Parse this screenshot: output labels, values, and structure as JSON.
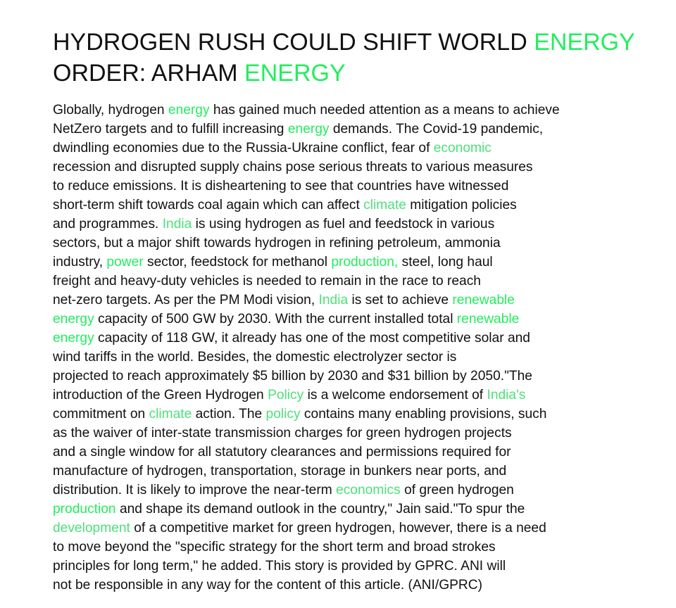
{
  "article": {
    "headline_lines": [
      [
        {
          "text": "HYDROGEN RUSH COULD SHIFT WORLD ",
          "hl": null
        },
        {
          "text": "ENERGY",
          "hl": "bright"
        }
      ],
      [
        {
          "text": "ORDER: ARHAM ",
          "hl": null
        },
        {
          "text": "ENERGY",
          "hl": "bright"
        }
      ]
    ],
    "body_lines": [
      [
        {
          "text": "Globally, hydrogen ",
          "hl": null
        },
        {
          "text": "energy",
          "hl": "bright"
        },
        {
          "text": " has gained much needed attention as a means to achieve",
          "hl": null
        }
      ],
      [
        {
          "text": "NetZero targets and to fulfill increasing ",
          "hl": null
        },
        {
          "text": "energy",
          "hl": "bright"
        },
        {
          "text": " demands. The Covid-19 pandemic,",
          "hl": null
        }
      ],
      [
        {
          "text": "dwindling economies due to the Russia-Ukraine conflict, fear of ",
          "hl": null
        },
        {
          "text": "economic",
          "hl": "soft"
        }
      ],
      [
        {
          "text": "recession and disrupted supply chains pose serious threats to various measures",
          "hl": null
        }
      ],
      [
        {
          "text": "to reduce emissions. It is disheartening to see that countries have witnessed",
          "hl": null
        }
      ],
      [
        {
          "text": "short-term shift towards coal again which can affect ",
          "hl": null
        },
        {
          "text": "climate",
          "hl": "soft"
        },
        {
          "text": " mitigation policies",
          "hl": null
        }
      ],
      [
        {
          "text": "and programmes. ",
          "hl": null
        },
        {
          "text": "India",
          "hl": "soft"
        },
        {
          "text": " is using hydrogen as fuel and feedstock in various",
          "hl": null
        }
      ],
      [
        {
          "text": "sectors, but a major shift towards hydrogen in refining petroleum, ammonia",
          "hl": null
        }
      ],
      [
        {
          "text": "industry, ",
          "hl": null
        },
        {
          "text": "power",
          "hl": "bright"
        },
        {
          "text": " sector, feedstock for methanol ",
          "hl": null
        },
        {
          "text": "production,",
          "hl": "bright"
        },
        {
          "text": " steel, long haul",
          "hl": null
        }
      ],
      [
        {
          "text": "freight and heavy-duty vehicles is needed to remain in the race to reach",
          "hl": null
        }
      ],
      [
        {
          "text": "net-zero targets. As per the PM Modi vision, ",
          "hl": null
        },
        {
          "text": "India",
          "hl": "soft"
        },
        {
          "text": " is set to achieve ",
          "hl": null
        },
        {
          "text": "renewable",
          "hl": "bright"
        }
      ],
      [
        {
          "text": "energy",
          "hl": "bright"
        },
        {
          "text": " capacity of 500 GW by 2030. With the current installed total ",
          "hl": null
        },
        {
          "text": "renewable",
          "hl": "bright"
        }
      ],
      [
        {
          "text": "energy",
          "hl": "bright"
        },
        {
          "text": " capacity of 118 GW, it already has one of the most competitive solar and",
          "hl": null
        }
      ],
      [
        {
          "text": "wind tariffs in the world. Besides, the domestic electrolyzer sector is",
          "hl": null
        }
      ],
      [
        {
          "text": "projected to reach approximately $5 billion by 2030 and $31 billion by 2050.\"The",
          "hl": null
        }
      ],
      [
        {
          "text": "introduction of the Green Hydrogen ",
          "hl": null
        },
        {
          "text": "Policy",
          "hl": "soft"
        },
        {
          "text": " is a welcome endorsement of ",
          "hl": null
        },
        {
          "text": "India's",
          "hl": "soft"
        }
      ],
      [
        {
          "text": "commitment on ",
          "hl": null
        },
        {
          "text": "climate",
          "hl": "soft"
        },
        {
          "text": " action. The ",
          "hl": null
        },
        {
          "text": "policy",
          "hl": "soft"
        },
        {
          "text": " contains many enabling provisions, such",
          "hl": null
        }
      ],
      [
        {
          "text": "as the waiver of inter-state transmission charges for green hydrogen projects",
          "hl": null
        }
      ],
      [
        {
          "text": "and a single window for all statutory clearances and permissions required for",
          "hl": null
        }
      ],
      [
        {
          "text": "manufacture of hydrogen, transportation, storage in bunkers near ports, and",
          "hl": null
        }
      ],
      [
        {
          "text": "distribution. It is likely to improve the near-term ",
          "hl": null
        },
        {
          "text": "economics",
          "hl": "soft"
        },
        {
          "text": " of green hydrogen",
          "hl": null
        }
      ],
      [
        {
          "text": "production",
          "hl": "bright"
        },
        {
          "text": " and shape its demand outlook in the country,\" Jain said.\"To spur the",
          "hl": null
        }
      ],
      [
        {
          "text": "development",
          "hl": "soft"
        },
        {
          "text": " of a competitive market for green hydrogen, however, there is a need",
          "hl": null
        }
      ],
      [
        {
          "text": "to move beyond the \"specific strategy for the short term and broad strokes",
          "hl": null
        }
      ],
      [
        {
          "text": "principles for long term,\" he added. This story is provided by GPRC. ANI will",
          "hl": null
        }
      ],
      [
        {
          "text": "not be responsible in any way for the content of this article. (ANI/GPRC)",
          "hl": null
        }
      ]
    ]
  },
  "colors": {
    "text": "#111111",
    "highlight_bright": "#22ee5e",
    "highlight_soft": "#4ee07a",
    "background": "#ffffff"
  }
}
